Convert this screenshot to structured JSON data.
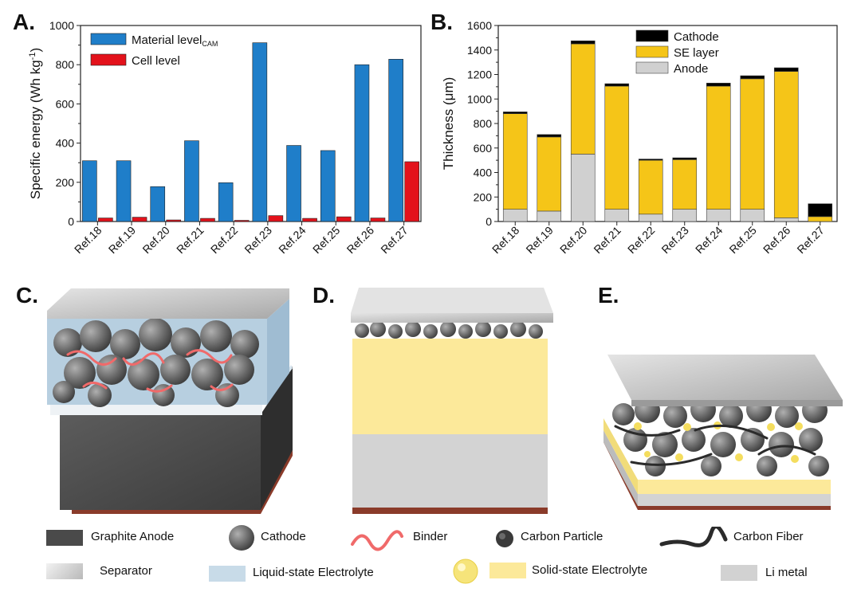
{
  "panels": {
    "a": "A.",
    "b": "B.",
    "c": "C.",
    "d": "D.",
    "e": "E."
  },
  "chart_data": [
    {
      "type": "bar",
      "ylabel": "Specific energy (Wh kg",
      "ylabel_sup": "-1",
      "ylabel_close": ")",
      "ylim": [
        0,
        1000
      ],
      "yticks": [
        "0",
        "200",
        "400",
        "600",
        "800",
        "1000"
      ],
      "categories": [
        "Ref.18",
        "Ref.19",
        "Ref.20",
        "Ref.21",
        "Ref.22",
        "Ref.23",
        "Ref.24",
        "Ref.25",
        "Ref.26",
        "Ref.27"
      ],
      "series": [
        {
          "name": "Material level",
          "name_sub": "CAM",
          "color": "#1f7ec9",
          "values": [
            310,
            310,
            178,
            412,
            198,
            912,
            388,
            362,
            800,
            828
          ]
        },
        {
          "name": "Cell level",
          "color": "#e3121b",
          "values": [
            18,
            22,
            8,
            16,
            6,
            30,
            16,
            24,
            18,
            305
          ]
        }
      ],
      "legend": "top-left"
    },
    {
      "type": "bar",
      "stacked": true,
      "ylabel": "Thickness (μm)",
      "ylim": [
        0,
        1600
      ],
      "yticks": [
        "0",
        "200",
        "400",
        "600",
        "800",
        "1000",
        "1200",
        "1400",
        "1600"
      ],
      "categories": [
        "Ref.18",
        "Ref.19",
        "Ref.20",
        "Ref.21",
        "Ref.22",
        "Ref.23",
        "Ref.24",
        "Ref.25",
        "Ref.26",
        "Ref.27"
      ],
      "series": [
        {
          "name": "Anode",
          "color": "#d0d0d0",
          "values": [
            100,
            85,
            550,
            100,
            60,
            100,
            100,
            100,
            30,
            0
          ]
        },
        {
          "name": "SE layer",
          "color": "#f5c518",
          "values": [
            780,
            605,
            900,
            1005,
            440,
            405,
            1005,
            1065,
            1195,
            40
          ]
        },
        {
          "name": "Cathode",
          "color": "#000000",
          "values": [
            15,
            20,
            25,
            20,
            10,
            15,
            25,
            25,
            30,
            105
          ]
        }
      ],
      "legend_order": [
        "Cathode",
        "SE layer",
        "Anode"
      ],
      "legend": "top-center"
    }
  ],
  "legend_items": {
    "graphite_anode": "Graphite Anode",
    "cathode": "Cathode",
    "binder": "Binder",
    "carbon_particle": "Carbon Particle",
    "carbon_fiber": "Carbon Fiber",
    "separator": "Separator",
    "liquid_electrolyte": "Liquid-state Electrolyte",
    "solid_electrolyte": "Solid-state Electrolyte",
    "li_metal": "Li metal"
  },
  "colors": {
    "graphite": "#4a4a4a",
    "sphere": "#6e6e6e",
    "binder": "#f06a6a",
    "liquid": "#c8dbe8",
    "solid": "#fbe89a",
    "li": "#d2d2d2",
    "copper": "#8a3b2a",
    "plate": "#c9c9c9"
  }
}
